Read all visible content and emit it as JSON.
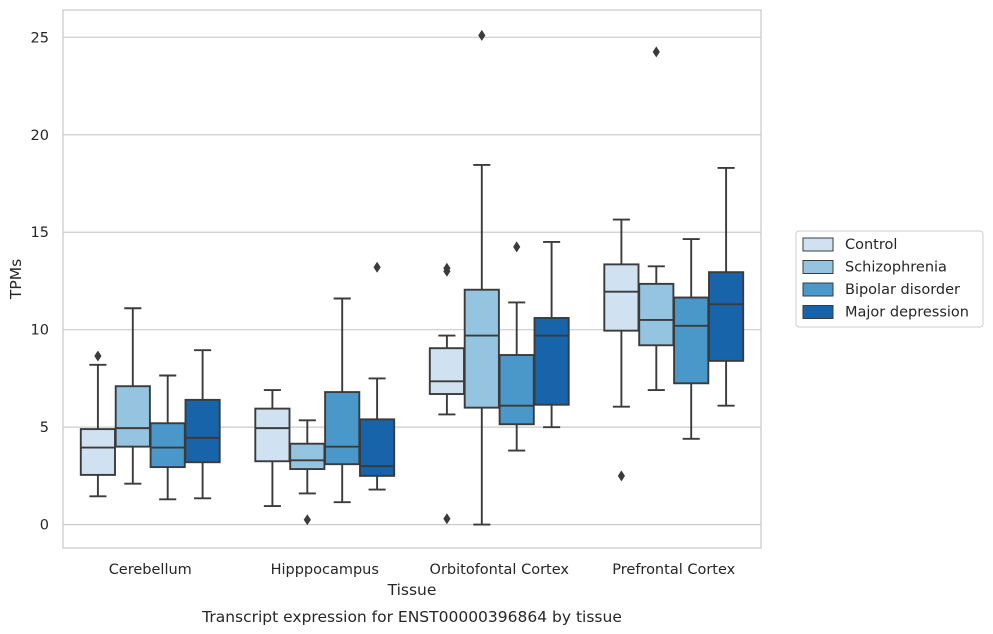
{
  "caption": "Transcript expression for ENST00000396864 by tissue",
  "chart_data": {
    "type": "box",
    "xlabel": "Tissue",
    "ylabel": "TPMs",
    "ylim": [
      -1.2,
      26.4
    ],
    "yticks": [
      0,
      5,
      10,
      15,
      20,
      25
    ],
    "grid": "horizontal",
    "legend_position": "right",
    "categories": [
      "Cerebellum",
      "Hipppocampus",
      "Orbitofontal Cortex",
      "Prefrontal Cortex"
    ],
    "series": [
      {
        "name": "Control",
        "color": "#d0e1f2",
        "boxes": [
          {
            "whislo": 1.45,
            "q1": 2.55,
            "med": 3.95,
            "q3": 4.9,
            "whishi": 8.2,
            "fliers": [
              8.65
            ]
          },
          {
            "whislo": 0.95,
            "q1": 3.25,
            "med": 4.95,
            "q3": 5.95,
            "whishi": 6.9,
            "fliers": []
          },
          {
            "whislo": 5.65,
            "q1": 6.7,
            "med": 7.35,
            "q3": 9.05,
            "whishi": 9.7,
            "fliers": [
              13.0,
              13.15,
              0.3
            ]
          },
          {
            "whislo": 6.05,
            "q1": 9.95,
            "med": 11.95,
            "q3": 13.35,
            "whishi": 15.65,
            "fliers": [
              2.5
            ]
          }
        ]
      },
      {
        "name": "Schizophrenia",
        "color": "#94c4df",
        "boxes": [
          {
            "whislo": 2.1,
            "q1": 4.0,
            "med": 4.95,
            "q3": 7.1,
            "whishi": 11.1,
            "fliers": []
          },
          {
            "whislo": 1.6,
            "q1": 2.85,
            "med": 3.3,
            "q3": 4.15,
            "whishi": 5.35,
            "fliers": [
              0.25
            ]
          },
          {
            "whislo": 0.0,
            "q1": 6.0,
            "med": 9.7,
            "q3": 12.05,
            "whishi": 18.45,
            "fliers": [
              25.1
            ]
          },
          {
            "whislo": 6.9,
            "q1": 9.2,
            "med": 10.5,
            "q3": 12.35,
            "whishi": 13.25,
            "fliers": [
              24.25
            ]
          }
        ]
      },
      {
        "name": "Bipolar disorder",
        "color": "#4a98c9",
        "boxes": [
          {
            "whislo": 1.3,
            "q1": 2.95,
            "med": 3.95,
            "q3": 5.2,
            "whishi": 7.65,
            "fliers": []
          },
          {
            "whislo": 1.15,
            "q1": 3.1,
            "med": 4.0,
            "q3": 6.8,
            "whishi": 11.6,
            "fliers": []
          },
          {
            "whislo": 3.8,
            "q1": 5.15,
            "med": 6.1,
            "q3": 8.7,
            "whishi": 11.4,
            "fliers": [
              14.25
            ]
          },
          {
            "whislo": 4.4,
            "q1": 7.25,
            "med": 10.2,
            "q3": 11.65,
            "whishi": 14.65,
            "fliers": []
          }
        ]
      },
      {
        "name": "Major depression",
        "color": "#1764ab",
        "boxes": [
          {
            "whislo": 1.35,
            "q1": 3.2,
            "med": 4.45,
            "q3": 6.4,
            "whishi": 8.95,
            "fliers": []
          },
          {
            "whislo": 1.8,
            "q1": 2.5,
            "med": 3.0,
            "q3": 5.4,
            "whishi": 7.5,
            "fliers": [
              13.2
            ]
          },
          {
            "whislo": 5.0,
            "q1": 6.15,
            "med": 9.7,
            "q3": 10.6,
            "whishi": 14.5,
            "fliers": []
          },
          {
            "whislo": 6.1,
            "q1": 8.4,
            "med": 11.3,
            "q3": 12.95,
            "whishi": 18.3,
            "fliers": []
          }
        ]
      }
    ]
  }
}
